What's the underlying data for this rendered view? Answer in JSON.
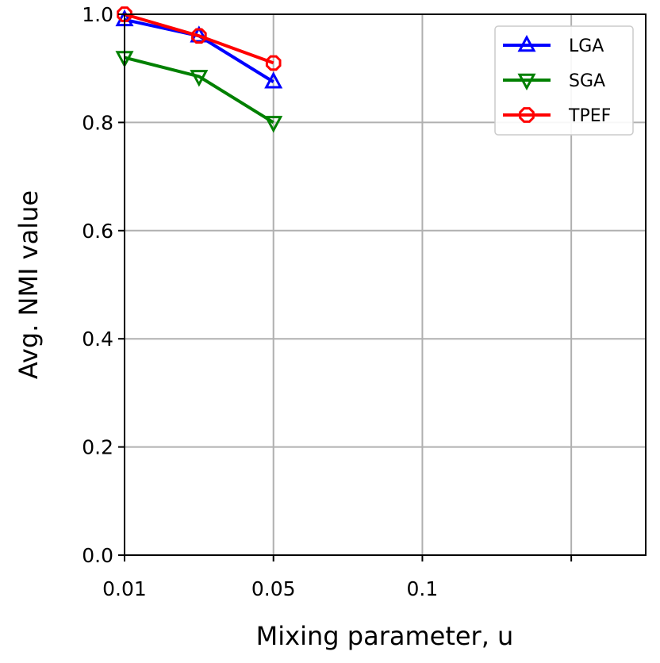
{
  "chart_data": {
    "type": "line",
    "xlabel": "Mixing parameter, u",
    "ylabel": "Avg. NMI value",
    "x_ticks": [
      "0.01",
      "0.05",
      "0.1",
      ""
    ],
    "x_tick_positions": [
      0,
      1,
      2,
      3
    ],
    "xlim": [
      0,
      3.5
    ],
    "ylim": [
      0.0,
      1.0
    ],
    "y_ticks": [
      "0.0",
      "0.2",
      "0.4",
      "0.6",
      "0.8",
      "1.0"
    ],
    "y_tick_values": [
      0.0,
      0.2,
      0.4,
      0.6,
      0.8,
      1.0
    ],
    "grid": true,
    "legend_position": "top-right",
    "series": [
      {
        "name": "LGA",
        "color": "#0000ff",
        "marker": "triangle-up",
        "points": [
          [
            0,
            0.99
          ],
          [
            0.5,
            0.96
          ],
          [
            1,
            0.875
          ]
        ]
      },
      {
        "name": "SGA",
        "color": "#008000",
        "marker": "triangle-down",
        "points": [
          [
            0,
            0.92
          ],
          [
            0.5,
            0.885
          ],
          [
            1,
            0.8
          ]
        ]
      },
      {
        "name": "TPEF",
        "color": "#ff0000",
        "marker": "octagon",
        "points": [
          [
            0,
            1.0
          ],
          [
            0.5,
            0.96
          ],
          [
            1,
            0.91
          ]
        ]
      }
    ]
  }
}
